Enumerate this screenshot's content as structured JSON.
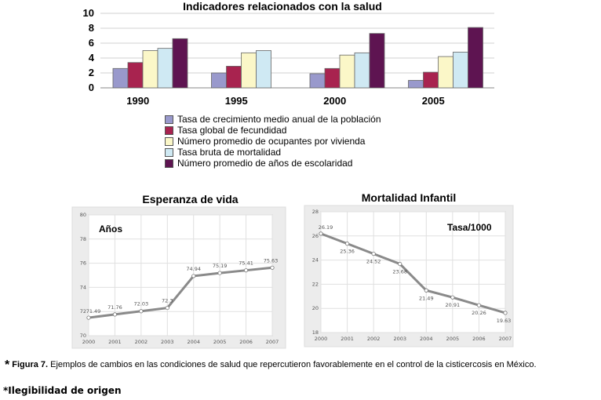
{
  "chart_data": [
    {
      "type": "bar",
      "title": "Indicadores relacionados con la salud",
      "categories": [
        "1990",
        "1995",
        "2000",
        "2005"
      ],
      "ylim": [
        0,
        10
      ],
      "yticks": [
        "0",
        "2",
        "4",
        "6",
        "8",
        "10"
      ],
      "series": [
        {
          "name": "Tasa de crecimiento medio anual de la población",
          "color": "#9999cc",
          "values": [
            2.6,
            2.0,
            1.9,
            1.0
          ]
        },
        {
          "name": "Tasa global de fecundidad",
          "color": "#a8234f",
          "values": [
            3.4,
            2.9,
            2.6,
            2.1
          ]
        },
        {
          "name": "Número promedio de ocupantes por vivienda",
          "color": "#fbf7c8",
          "values": [
            5.0,
            4.7,
            4.4,
            4.2
          ]
        },
        {
          "name": "Tasa bruta de mortalidad",
          "color": "#cfe9f3",
          "values": [
            5.3,
            5.0,
            4.7,
            4.8
          ]
        },
        {
          "name": "Número promedio de años de escolaridad",
          "color": "#5e1451",
          "values": [
            6.6,
            null,
            7.3,
            8.1
          ]
        }
      ]
    },
    {
      "type": "line",
      "title": "Esperanza de vida",
      "annotation": "Años",
      "x": [
        "2000",
        "2001",
        "2002",
        "2003",
        "2004",
        "2005",
        "2006",
        "2007"
      ],
      "y": [
        71.49,
        71.76,
        72.03,
        72.3,
        74.94,
        75.19,
        75.41,
        75.63
      ],
      "labels": [
        "71.49",
        "71.76",
        "72.03",
        "72.3",
        "74.94",
        "75.19",
        "75.41",
        "75.63"
      ],
      "ylim": [
        70,
        80
      ],
      "yticks": [
        "70",
        "72",
        "74",
        "76",
        "78",
        "80"
      ]
    },
    {
      "type": "line",
      "title": "Mortalidad Infantil",
      "annotation": "Tasa/1000",
      "x": [
        "2000",
        "2001",
        "2002",
        "2003",
        "2004",
        "2005",
        "2006",
        "2007"
      ],
      "y": [
        26.19,
        25.36,
        24.52,
        23.68,
        21.49,
        20.91,
        20.26,
        19.63
      ],
      "labels": [
        "26.19",
        "25.36",
        "24.52",
        "23.68",
        "21.49",
        "20.91",
        "20.26",
        "19.63"
      ],
      "ylim": [
        18,
        28
      ],
      "yticks": [
        "18",
        "20",
        "22",
        "24",
        "26",
        "28"
      ]
    }
  ],
  "caption": {
    "star": "*",
    "figure_label": "Figura 7.",
    "text": "Ejemplos de cambios en las condiciones de salud que repercutieron favorablemente en el control de la cisticercosis en México."
  },
  "note": "*Ilegibilidad de origen"
}
